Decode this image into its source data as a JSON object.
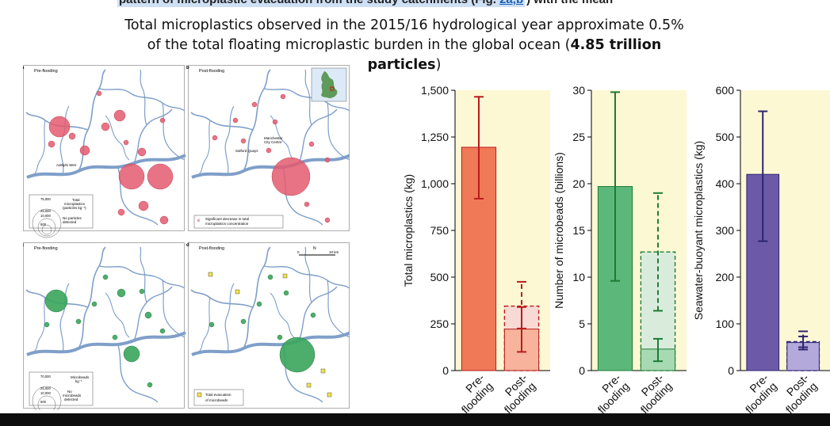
{
  "header": {
    "top_cut_text": "pattern of microplastic evacuation from the study catchments (Fig. 2a,b) with the mean",
    "top_cut_highlight": "pattern of microplastic evacuation from the study catchments (Fig. ",
    "top_cut_link": "2a,b",
    "top_cut_tail": ") with the mean",
    "headline_line1": "Total microplastics observed in the 2015/16 hydrological year approximate 0.5%",
    "headline_line2a": "of the total floating microplastic burden in the global ocean (",
    "headline_bold": "4.85 trillion particles",
    "headline_end": ")"
  },
  "maps": {
    "a_letter": "a",
    "a_title": "Pre-flooding",
    "b_letter": "b",
    "b_title": "Post-flooding",
    "c_letter": "c",
    "c_title": "Pre-flooding",
    "d_letter": "d",
    "d_title": "Post-flooding",
    "label_adelphi": "Adelphi Weir",
    "label_salford": "Salford Quays",
    "label_manchester_1": "Manchester",
    "label_manchester_2": "City Centre",
    "legend_a": {
      "v1": "75,000",
      "v2": "25,000",
      "v3": "10,000",
      "v4": "500",
      "t1": "Total",
      "t2": "microplastics",
      "t3": "(particles kg⁻¹)",
      "n1": "No particles",
      "n2": "detected"
    },
    "legend_b": {
      "t1": "Significant decrease in total",
      "t2": "microplastics concentration"
    },
    "legend_c": {
      "v1": "70,000",
      "v2": "25,000",
      "v3": "10,000",
      "v4": "500",
      "t1": "Microbeads",
      "t2": "kg⁻¹",
      "n1": "No",
      "n2": "microbeads",
      "n3": "detected"
    },
    "legend_d": {
      "t1": "Total evacuation",
      "t2": "of microbeads"
    },
    "scale_0": "0",
    "scale_10": "10 km",
    "north": "N",
    "colors": {
      "red": "#e35b6e",
      "green": "#3aa55c",
      "river": "#7f9fc9",
      "yellow": "#f3e24a"
    }
  },
  "chart_data": [
    {
      "type": "bar",
      "ylabel": "Total microplastics (kg)",
      "ylim": [
        0,
        1500
      ],
      "yticks": [
        0,
        250,
        500,
        750,
        1000,
        1250,
        1500
      ],
      "ytick_labels": [
        "0",
        "250",
        "500",
        "750",
        "1,000",
        "1,250",
        "1,500"
      ],
      "categories": [
        "Pre-flooding",
        "Post-flooding"
      ],
      "category_lines": [
        [
          "Pre-",
          "flooding"
        ],
        [
          "Post-",
          "flooding"
        ]
      ],
      "values": [
        1195,
        222
      ],
      "errors": [
        [
          920,
          1465
        ],
        [
          100,
          340
        ]
      ],
      "dashed_values": [
        null,
        345
      ],
      "dashed_errors": [
        null,
        [
          225,
          475
        ]
      ],
      "colors": [
        "#f07957",
        "#f7b39b"
      ],
      "dashed_color": "#f9d9d4",
      "edge_color": "#b71c1c",
      "error_color": "#b71c1c",
      "background": "#fdf8d4"
    },
    {
      "type": "bar",
      "ylabel": "Number of microbeads (billions)",
      "ylim": [
        0,
        30
      ],
      "yticks": [
        0,
        5,
        10,
        15,
        20,
        25,
        30
      ],
      "ytick_labels": [
        "0",
        "5",
        "10",
        "15",
        "20",
        "25",
        "30"
      ],
      "categories": [
        "Pre-flooding",
        "Post-flooding"
      ],
      "category_lines": [
        [
          "Pre-",
          "flooding"
        ],
        [
          "Post-",
          "flooding"
        ]
      ],
      "values": [
        19.7,
        2.3
      ],
      "errors": [
        [
          9.6,
          29.8
        ],
        [
          1.0,
          3.4
        ]
      ],
      "dashed_values": [
        null,
        12.7
      ],
      "dashed_errors": [
        null,
        [
          6.4,
          19.0
        ]
      ],
      "colors": [
        "#5cb87a",
        "#a7d9b2"
      ],
      "dashed_color": "#d9ecdc",
      "edge_color": "#1e7b34",
      "error_color": "#1e7b34",
      "background": "#fdf8d4"
    },
    {
      "type": "bar",
      "ylabel": "Seawater-buoyant microplastics (kg)",
      "ylim": [
        0,
        600
      ],
      "yticks": [
        0,
        100,
        200,
        300,
        400,
        500,
        600
      ],
      "ytick_labels": [
        "0",
        "100",
        "200",
        "300",
        "400",
        "500",
        "600"
      ],
      "categories": [
        "Pre-flooding",
        "Post-flooding"
      ],
      "category_lines": [
        [
          "Pre-",
          "flooding"
        ],
        [
          "Post-",
          "flooding"
        ]
      ],
      "values": [
        420,
        60
      ],
      "errors": [
        [
          277,
          555
        ],
        [
          45,
          73
        ]
      ],
      "dashed_values": [
        null,
        62
      ],
      "dashed_errors": [
        null,
        [
          50,
          84
        ]
      ],
      "colors": [
        "#6c5aa8",
        "#b3a9db"
      ],
      "dashed_color": "#d9d3ee",
      "edge_color": "#2e2472",
      "error_color": "#2e2472",
      "background": "#fdf8d4"
    }
  ]
}
